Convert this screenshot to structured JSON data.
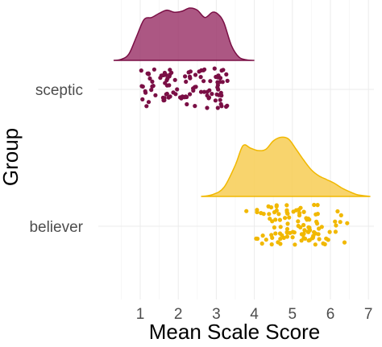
{
  "chart_data": {
    "type": "raincloud",
    "title": "",
    "xlabel": "Mean Scale Score",
    "ylabel": "Group",
    "xlim": [
      -0.2,
      7.1
    ],
    "x_ticks": [
      1,
      2,
      3,
      4,
      5,
      6,
      7
    ],
    "grid": true,
    "legend": "none",
    "groups": [
      {
        "name": "sceptic",
        "fill": "#9e3a6d",
        "edge": "#7a0f45",
        "point_color": "#7a0f45",
        "density": [
          [
            0.3,
            0.0
          ],
          [
            0.5,
            0.02
          ],
          [
            0.7,
            0.12
          ],
          [
            0.9,
            0.45
          ],
          [
            1.1,
            0.78
          ],
          [
            1.3,
            0.82
          ],
          [
            1.5,
            0.9
          ],
          [
            1.7,
            0.96
          ],
          [
            1.9,
            0.92
          ],
          [
            2.1,
            0.94
          ],
          [
            2.3,
            1.0
          ],
          [
            2.5,
            0.96
          ],
          [
            2.7,
            0.82
          ],
          [
            2.9,
            0.92
          ],
          [
            3.05,
            0.88
          ],
          [
            3.2,
            0.72
          ],
          [
            3.4,
            0.28
          ],
          [
            3.6,
            0.06
          ],
          [
            3.8,
            0.01
          ],
          [
            4.0,
            0.0
          ]
        ],
        "points_range": [
          1.0,
          3.3
        ],
        "points_count": 110
      },
      {
        "name": "believer",
        "fill": "#f7cc53",
        "edge": "#f1b800",
        "point_color": "#f1b800",
        "density": [
          [
            2.6,
            0.0
          ],
          [
            2.9,
            0.03
          ],
          [
            3.2,
            0.15
          ],
          [
            3.5,
            0.52
          ],
          [
            3.7,
            0.84
          ],
          [
            3.9,
            0.8
          ],
          [
            4.1,
            0.76
          ],
          [
            4.3,
            0.78
          ],
          [
            4.5,
            0.92
          ],
          [
            4.7,
            0.98
          ],
          [
            4.9,
            0.95
          ],
          [
            5.1,
            0.78
          ],
          [
            5.3,
            0.6
          ],
          [
            5.5,
            0.44
          ],
          [
            5.7,
            0.34
          ],
          [
            5.9,
            0.28
          ],
          [
            6.1,
            0.22
          ],
          [
            6.3,
            0.14
          ],
          [
            6.5,
            0.08
          ],
          [
            6.7,
            0.03
          ],
          [
            6.9,
            0.01
          ],
          [
            7.05,
            0.0
          ]
        ],
        "points_range": [
          3.5,
          6.7
        ],
        "points_count": 110
      }
    ]
  }
}
